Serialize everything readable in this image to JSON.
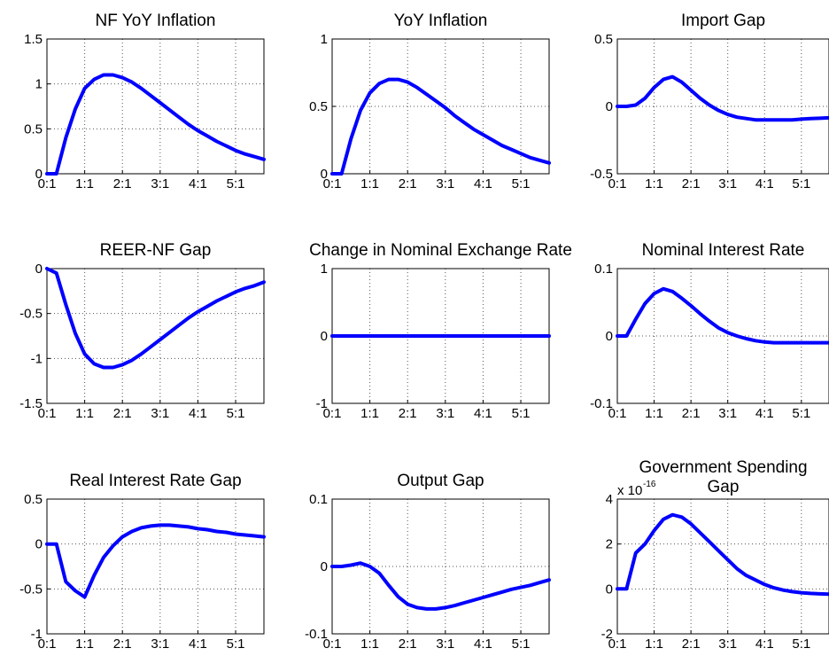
{
  "chart_data": [
    {
      "type": "line",
      "title": "NF YoY Inflation",
      "x_ticks": [
        "0:1",
        "1:1",
        "2:1",
        "3:1",
        "4:1",
        "5:1"
      ],
      "y_ticks": [
        "0",
        "0.5",
        "1",
        "1.5"
      ],
      "ylim": [
        0,
        1.5
      ],
      "xlim": [
        1,
        24
      ],
      "grid": true,
      "color": "#0000ff",
      "series": [
        {
          "x": [
            1,
            2,
            3,
            4,
            5,
            6,
            7,
            8,
            9,
            10,
            11,
            12,
            13,
            14,
            15,
            16,
            17,
            18,
            19,
            20,
            21,
            22,
            23,
            24
          ],
          "y": [
            0,
            0,
            0.4,
            0.72,
            0.95,
            1.05,
            1.1,
            1.1,
            1.07,
            1.02,
            0.95,
            0.87,
            0.79,
            0.71,
            0.63,
            0.55,
            0.48,
            0.42,
            0.36,
            0.31,
            0.26,
            0.22,
            0.19,
            0.16
          ]
        }
      ]
    },
    {
      "type": "line",
      "title": "YoY Inflation",
      "x_ticks": [
        "0:1",
        "1:1",
        "2:1",
        "3:1",
        "4:1",
        "5:1"
      ],
      "y_ticks": [
        "0",
        "0.5",
        "1"
      ],
      "ylim": [
        0,
        1
      ],
      "xlim": [
        1,
        24
      ],
      "grid": true,
      "color": "#0000ff",
      "series": [
        {
          "x": [
            1,
            2,
            3,
            4,
            5,
            6,
            7,
            8,
            9,
            10,
            11,
            12,
            13,
            14,
            15,
            16,
            17,
            18,
            19,
            20,
            21,
            22,
            23,
            24
          ],
          "y": [
            0,
            0,
            0.26,
            0.47,
            0.6,
            0.67,
            0.7,
            0.7,
            0.68,
            0.64,
            0.59,
            0.54,
            0.49,
            0.43,
            0.38,
            0.33,
            0.29,
            0.25,
            0.21,
            0.18,
            0.15,
            0.12,
            0.1,
            0.08
          ]
        }
      ]
    },
    {
      "type": "line",
      "title": "Import Gap",
      "x_ticks": [
        "0:1",
        "1:1",
        "2:1",
        "3:1",
        "4:1",
        "5:1"
      ],
      "y_ticks": [
        "-0.5",
        "0",
        "0.5"
      ],
      "ylim": [
        -0.5,
        0.5
      ],
      "xlim": [
        1,
        24
      ],
      "grid": true,
      "color": "#0000ff",
      "series": [
        {
          "x": [
            1,
            2,
            3,
            4,
            5,
            6,
            7,
            8,
            9,
            10,
            11,
            12,
            13,
            14,
            15,
            16,
            17,
            18,
            19,
            20,
            21,
            22,
            23,
            24
          ],
          "y": [
            0,
            0,
            0.01,
            0.06,
            0.14,
            0.2,
            0.22,
            0.18,
            0.12,
            0.06,
            0.01,
            -0.03,
            -0.06,
            -0.08,
            -0.09,
            -0.1,
            -0.1,
            -0.1,
            -0.1,
            -0.1,
            -0.095,
            -0.09,
            -0.088,
            -0.085
          ]
        }
      ]
    },
    {
      "type": "line",
      "title": "REER-NF Gap",
      "x_ticks": [
        "0:1",
        "1:1",
        "2:1",
        "3:1",
        "4:1",
        "5:1"
      ],
      "y_ticks": [
        "-1.5",
        "-1",
        "-0.5",
        "0"
      ],
      "ylim": [
        -1.5,
        0
      ],
      "xlim": [
        1,
        24
      ],
      "grid": true,
      "color": "#0000ff",
      "series": [
        {
          "x": [
            1,
            2,
            3,
            4,
            5,
            6,
            7,
            8,
            9,
            10,
            11,
            12,
            13,
            14,
            15,
            16,
            17,
            18,
            19,
            20,
            21,
            22,
            23,
            24
          ],
          "y": [
            0,
            -0.05,
            -0.4,
            -0.72,
            -0.95,
            -1.06,
            -1.1,
            -1.1,
            -1.07,
            -1.02,
            -0.95,
            -0.87,
            -0.79,
            -0.71,
            -0.63,
            -0.55,
            -0.48,
            -0.42,
            -0.36,
            -0.31,
            -0.26,
            -0.22,
            -0.19,
            -0.15
          ]
        }
      ]
    },
    {
      "type": "line",
      "title": "Change in Nominal Exchange Rate",
      "x_ticks": [
        "0:1",
        "1:1",
        "2:1",
        "3:1",
        "4:1",
        "5:1"
      ],
      "y_ticks": [
        "-1",
        "0",
        "1"
      ],
      "ylim": [
        -1,
        1
      ],
      "xlim": [
        1,
        24
      ],
      "grid": true,
      "color": "#0000ff",
      "series": [
        {
          "x": [
            1,
            24
          ],
          "y": [
            0,
            0
          ]
        }
      ]
    },
    {
      "type": "line",
      "title": "Nominal Interest Rate",
      "x_ticks": [
        "0:1",
        "1:1",
        "2:1",
        "3:1",
        "4:1",
        "5:1"
      ],
      "y_ticks": [
        "-0.1",
        "0",
        "0.1"
      ],
      "ylim": [
        -0.1,
        0.1
      ],
      "xlim": [
        1,
        24
      ],
      "grid": true,
      "color": "#0000ff",
      "series": [
        {
          "x": [
            1,
            2,
            3,
            4,
            5,
            6,
            7,
            8,
            9,
            10,
            11,
            12,
            13,
            14,
            15,
            16,
            17,
            18,
            19,
            20,
            21,
            22,
            23,
            24
          ],
          "y": [
            0,
            0,
            0.025,
            0.048,
            0.063,
            0.07,
            0.066,
            0.056,
            0.045,
            0.033,
            0.022,
            0.012,
            0.005,
            0,
            -0.004,
            -0.007,
            -0.009,
            -0.01,
            -0.01,
            -0.01,
            -0.01,
            -0.01,
            -0.01,
            -0.01
          ]
        }
      ]
    },
    {
      "type": "line",
      "title": "Real Interest Rate Gap",
      "x_ticks": [
        "0:1",
        "1:1",
        "2:1",
        "3:1",
        "4:1",
        "5:1"
      ],
      "y_ticks": [
        "-1",
        "-0.5",
        "0",
        "0.5"
      ],
      "ylim": [
        -1,
        0.5
      ],
      "xlim": [
        1,
        24
      ],
      "grid": true,
      "color": "#0000ff",
      "series": [
        {
          "x": [
            1,
            2,
            3,
            4,
            5,
            6,
            7,
            8,
            9,
            10,
            11,
            12,
            13,
            14,
            15,
            16,
            17,
            18,
            19,
            20,
            21,
            22,
            23,
            24
          ],
          "y": [
            0,
            0,
            -0.42,
            -0.52,
            -0.59,
            -0.35,
            -0.15,
            -0.02,
            0.08,
            0.14,
            0.18,
            0.2,
            0.21,
            0.21,
            0.2,
            0.19,
            0.17,
            0.16,
            0.14,
            0.13,
            0.11,
            0.1,
            0.09,
            0.08
          ]
        }
      ]
    },
    {
      "type": "line",
      "title": "Output Gap",
      "x_ticks": [
        "0:1",
        "1:1",
        "2:1",
        "3:1",
        "4:1",
        "5:1"
      ],
      "y_ticks": [
        "-0.1",
        "0",
        "0.1"
      ],
      "ylim": [
        -0.1,
        0.1
      ],
      "xlim": [
        1,
        24
      ],
      "grid": true,
      "color": "#0000ff",
      "series": [
        {
          "x": [
            1,
            2,
            3,
            4,
            5,
            6,
            7,
            8,
            9,
            10,
            11,
            12,
            13,
            14,
            15,
            16,
            17,
            18,
            19,
            20,
            21,
            22,
            23,
            24
          ],
          "y": [
            0,
            0,
            0.002,
            0.005,
            0,
            -0.01,
            -0.028,
            -0.045,
            -0.056,
            -0.061,
            -0.063,
            -0.063,
            -0.061,
            -0.058,
            -0.054,
            -0.05,
            -0.046,
            -0.042,
            -0.038,
            -0.034,
            -0.031,
            -0.028,
            -0.024,
            -0.02
          ]
        }
      ]
    },
    {
      "type": "line",
      "title": "Government Spending Gap",
      "title_lines": [
        "Government Spending",
        "Gap"
      ],
      "axis_exponent": "x 10",
      "axis_exponent_power": "-16",
      "x_ticks": [
        "0:1",
        "1:1",
        "2:1",
        "3:1",
        "4:1",
        "5:1"
      ],
      "y_ticks": [
        "-2",
        "0",
        "2",
        "4"
      ],
      "ylim": [
        -2,
        4
      ],
      "xlim": [
        1,
        24
      ],
      "grid": true,
      "color": "#0000ff",
      "series": [
        {
          "x": [
            1,
            2,
            3,
            4,
            5,
            6,
            7,
            8,
            9,
            10,
            11,
            12,
            13,
            14,
            15,
            16,
            17,
            18,
            19,
            20,
            21,
            22,
            23,
            24
          ],
          "y": [
            0,
            0,
            1.6,
            2.0,
            2.6,
            3.1,
            3.3,
            3.2,
            2.9,
            2.5,
            2.1,
            1.7,
            1.3,
            0.9,
            0.6,
            0.4,
            0.2,
            0.05,
            -0.05,
            -0.12,
            -0.17,
            -0.2,
            -0.22,
            -0.23
          ]
        }
      ]
    }
  ]
}
